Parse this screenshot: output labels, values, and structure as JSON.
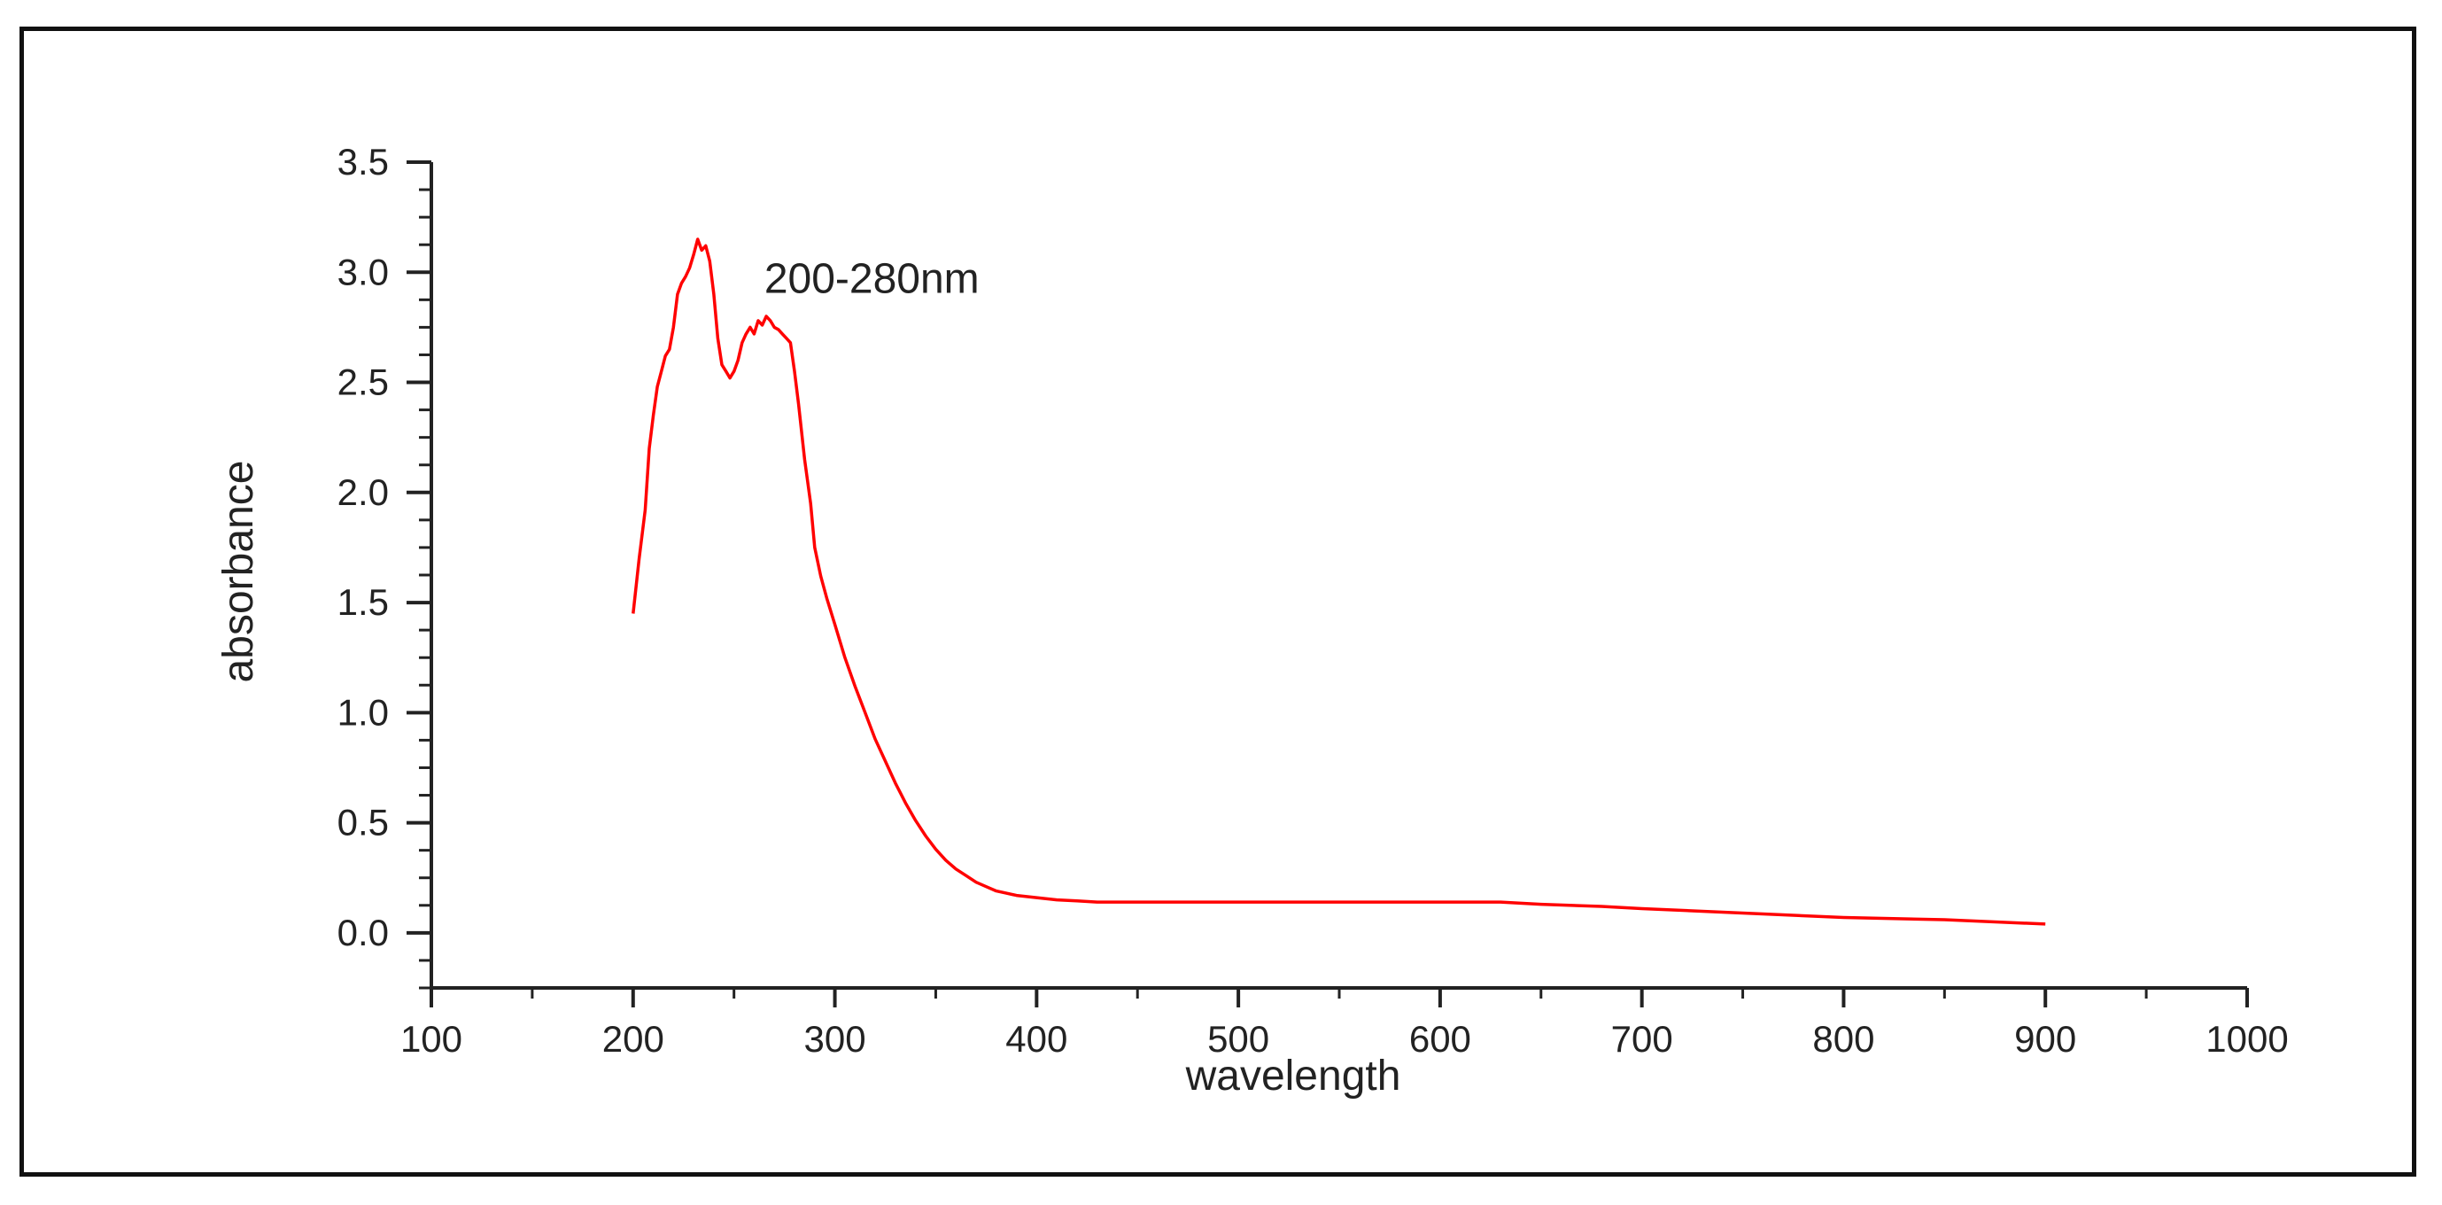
{
  "chart_data": {
    "type": "line",
    "title": "",
    "xlabel": "wavelength",
    "ylabel": "absorbance",
    "xlim": [
      100,
      1000
    ],
    "ylim": [
      -0.25,
      3.5
    ],
    "xticks": [
      100,
      200,
      300,
      400,
      500,
      600,
      700,
      800,
      900,
      1000
    ],
    "xtick_labels": [
      "100",
      "200",
      "300",
      "400",
      "500",
      "600",
      "700",
      "800",
      "900",
      "1000"
    ],
    "yticks": [
      0.0,
      0.5,
      1.0,
      1.5,
      2.0,
      2.5,
      3.0,
      3.5
    ],
    "ytick_labels": [
      "0.0",
      "0.5",
      "1.0",
      "1.5",
      "2.0",
      "2.5",
      "3.0",
      "3.5"
    ],
    "grid": false,
    "annotations": [
      {
        "text": "200-280nm",
        "x": 265,
        "y": 2.97
      }
    ],
    "series": [
      {
        "name": "absorbance",
        "color": "#ff0000",
        "x": [
          200,
          203,
          206,
          208,
          210,
          212,
          214,
          216,
          218,
          220,
          222,
          224,
          226,
          228,
          230,
          232,
          234,
          236,
          238,
          240,
          242,
          244,
          246,
          248,
          250,
          252,
          254,
          256,
          258,
          260,
          262,
          264,
          266,
          268,
          270,
          272,
          274,
          276,
          278,
          280,
          282,
          285,
          288,
          290,
          293,
          296,
          300,
          305,
          310,
          315,
          320,
          325,
          330,
          335,
          340,
          345,
          350,
          355,
          360,
          365,
          370,
          375,
          380,
          385,
          390,
          400,
          410,
          420,
          430,
          440,
          460,
          500,
          550,
          600,
          630,
          650,
          680,
          700,
          750,
          800,
          850,
          900
        ],
        "y": [
          1.45,
          1.7,
          1.92,
          2.2,
          2.35,
          2.48,
          2.55,
          2.62,
          2.65,
          2.75,
          2.9,
          2.95,
          2.98,
          3.02,
          3.08,
          3.15,
          3.1,
          3.12,
          3.05,
          2.9,
          2.7,
          2.58,
          2.55,
          2.52,
          2.55,
          2.6,
          2.68,
          2.72,
          2.75,
          2.72,
          2.78,
          2.76,
          2.8,
          2.78,
          2.75,
          2.74,
          2.72,
          2.7,
          2.68,
          2.55,
          2.4,
          2.15,
          1.95,
          1.75,
          1.62,
          1.52,
          1.4,
          1.25,
          1.12,
          1.0,
          0.88,
          0.78,
          0.68,
          0.59,
          0.51,
          0.44,
          0.38,
          0.33,
          0.29,
          0.26,
          0.23,
          0.21,
          0.19,
          0.18,
          0.17,
          0.16,
          0.15,
          0.145,
          0.14,
          0.14,
          0.14,
          0.14,
          0.14,
          0.14,
          0.14,
          0.13,
          0.12,
          0.11,
          0.09,
          0.07,
          0.06,
          0.04
        ]
      }
    ]
  }
}
